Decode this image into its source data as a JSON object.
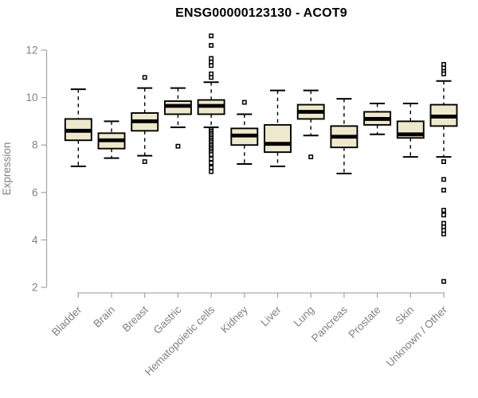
{
  "chart_data": {
    "type": "boxplot",
    "title": "ENSG00000123130 - ACOT9",
    "xlabel": "",
    "ylabel": "Expression",
    "ylim": [
      2,
      12
    ],
    "yticks": [
      2,
      4,
      6,
      8,
      10,
      12
    ],
    "grid": false,
    "legend": "none",
    "colors": {
      "box_fill": "#EEE8CD",
      "box_stroke": "#000000",
      "median": "#000000",
      "outlier_stroke": "#000000",
      "outlier_fill": "#ffffff",
      "axis_line": "#ababab",
      "axis_text": "#818181",
      "title_text": "#000000"
    },
    "categories": [
      "Bladder",
      "Brain",
      "Breast",
      "Gastric",
      "Hematopoietic cells",
      "Kidney",
      "Liver",
      "Lung",
      "Pancreas",
      "Prostate",
      "Skin",
      "Unknown / Other"
    ],
    "boxes": [
      {
        "category": "Bladder",
        "whisker_low": 7.1,
        "q1": 8.2,
        "median": 8.6,
        "q3": 9.1,
        "whisker_high": 10.35,
        "outliers": []
      },
      {
        "category": "Brain",
        "whisker_low": 7.45,
        "q1": 7.85,
        "median": 8.2,
        "q3": 8.5,
        "whisker_high": 9.0,
        "outliers": []
      },
      {
        "category": "Breast",
        "whisker_low": 7.55,
        "q1": 8.6,
        "median": 9.0,
        "q3": 9.35,
        "whisker_high": 10.4,
        "outliers": [
          10.85,
          7.3
        ]
      },
      {
        "category": "Gastric",
        "whisker_low": 8.75,
        "q1": 9.3,
        "median": 9.65,
        "q3": 9.85,
        "whisker_high": 10.4,
        "outliers": [
          7.95
        ]
      },
      {
        "category": "Hematopoietic cells",
        "whisker_low": 8.75,
        "q1": 9.3,
        "median": 9.65,
        "q3": 9.9,
        "whisker_high": 10.65,
        "outliers": [
          12.6,
          12.2,
          11.65,
          11.5,
          11.35,
          11.0,
          10.85,
          8.65,
          8.58,
          8.5,
          8.43,
          8.35,
          8.28,
          8.2,
          8.13,
          8.05,
          7.98,
          7.9,
          7.83,
          7.75,
          7.68,
          7.6,
          7.42,
          7.25,
          7.05,
          6.88
        ]
      },
      {
        "category": "Kidney",
        "whisker_low": 7.2,
        "q1": 8.0,
        "median": 8.4,
        "q3": 8.7,
        "whisker_high": 9.3,
        "outliers": [
          9.8
        ]
      },
      {
        "category": "Liver",
        "whisker_low": 7.1,
        "q1": 7.7,
        "median": 8.05,
        "q3": 8.85,
        "whisker_high": 10.3,
        "outliers": []
      },
      {
        "category": "Lung",
        "whisker_low": 8.4,
        "q1": 9.1,
        "median": 9.4,
        "q3": 9.7,
        "whisker_high": 10.3,
        "outliers": [
          7.5
        ]
      },
      {
        "category": "Pancreas",
        "whisker_low": 6.8,
        "q1": 7.9,
        "median": 8.35,
        "q3": 8.8,
        "whisker_high": 9.95,
        "outliers": []
      },
      {
        "category": "Prostate",
        "whisker_low": 8.45,
        "q1": 8.85,
        "median": 9.1,
        "q3": 9.4,
        "whisker_high": 9.75,
        "outliers": []
      },
      {
        "category": "Skin",
        "whisker_low": 7.5,
        "q1": 8.3,
        "median": 8.45,
        "q3": 9.0,
        "whisker_high": 9.75,
        "outliers": []
      },
      {
        "category": "Unknown / Other",
        "whisker_low": 7.5,
        "q1": 8.8,
        "median": 9.2,
        "q3": 9.7,
        "whisker_high": 10.7,
        "outliers": [
          11.4,
          11.25,
          11.1,
          11.0,
          7.3,
          6.55,
          6.1,
          5.25,
          5.05,
          4.7,
          4.55,
          4.4,
          4.25,
          2.25
        ]
      }
    ]
  }
}
